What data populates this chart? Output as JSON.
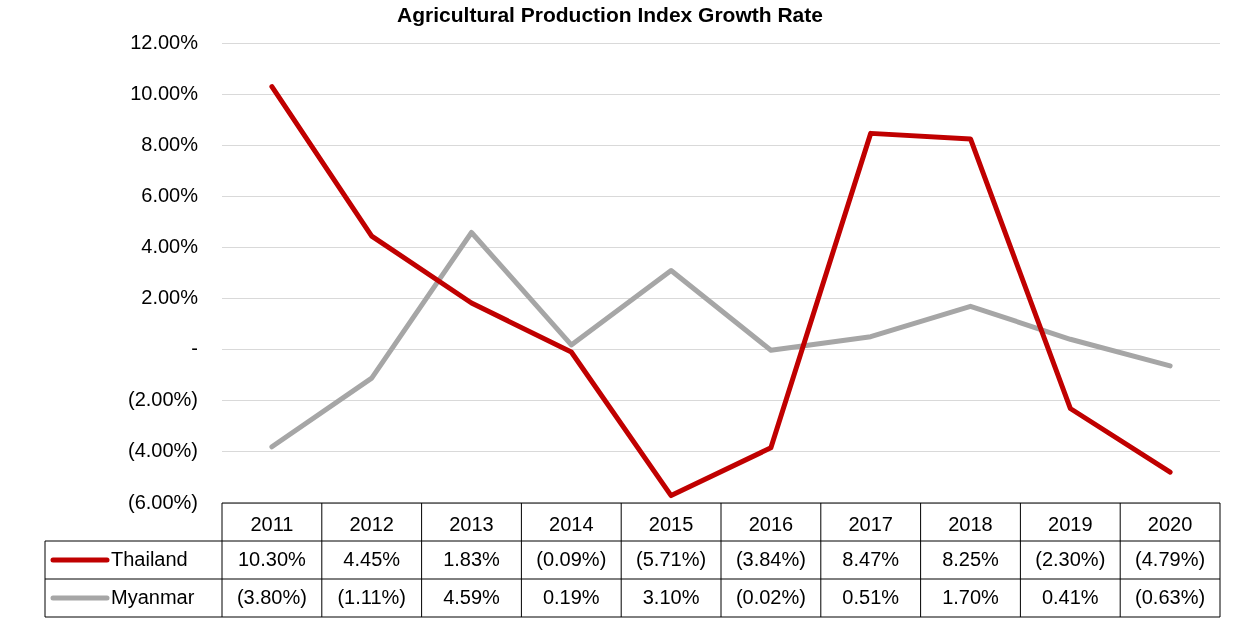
{
  "chart_data": {
    "type": "line",
    "title": "Agricultural Production Index Growth Rate",
    "categories": [
      "2011",
      "2012",
      "2013",
      "2014",
      "2015",
      "2016",
      "2017",
      "2018",
      "2019",
      "2020"
    ],
    "series": [
      {
        "name": "Thailand",
        "color": "#c00000",
        "values": [
          10.3,
          4.45,
          1.83,
          -0.09,
          -5.71,
          -3.84,
          8.47,
          8.25,
          -2.3,
          -4.79
        ],
        "value_labels": [
          "10.30%",
          "4.45%",
          "1.83%",
          "(0.09%)",
          "(5.71%)",
          "(3.84%)",
          "8.47%",
          "8.25%",
          "(2.30%)",
          "(4.79%)"
        ]
      },
      {
        "name": "Myanmar",
        "color": "#a6a6a6",
        "values": [
          -3.8,
          -1.11,
          4.59,
          0.19,
          3.1,
          -0.02,
          0.51,
          1.7,
          0.41,
          -0.63
        ],
        "value_labels": [
          "(3.80%)",
          "(1.11%)",
          "4.59%",
          "0.19%",
          "3.10%",
          "(0.02%)",
          "0.51%",
          "1.70%",
          "0.41%",
          "(0.63%)"
        ]
      }
    ],
    "ylim": [
      -6,
      12
    ],
    "yticks": [
      {
        "value": -6,
        "label": "(6.00%)"
      },
      {
        "value": -4,
        "label": "(4.00%)"
      },
      {
        "value": -2,
        "label": "(2.00%)"
      },
      {
        "value": 0,
        "label": "-"
      },
      {
        "value": 2,
        "label": "2.00%"
      },
      {
        "value": 4,
        "label": "4.00%"
      },
      {
        "value": 6,
        "label": "6.00%"
      },
      {
        "value": 8,
        "label": "8.00%"
      },
      {
        "value": 10,
        "label": "10.00%"
      },
      {
        "value": 12,
        "label": "12.00%"
      }
    ],
    "grid": "y",
    "legend": "bottom",
    "marker": "none",
    "line_style": "solid"
  }
}
